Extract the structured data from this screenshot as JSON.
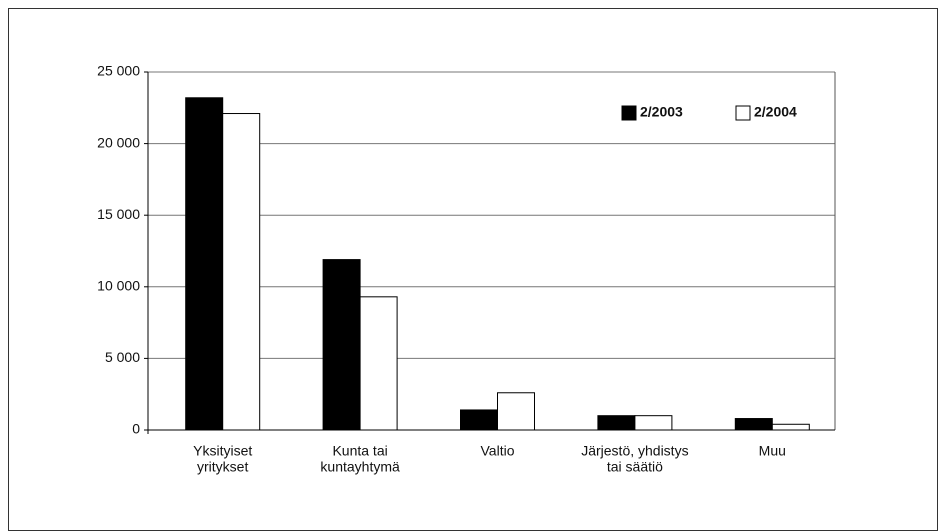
{
  "chart_data": {
    "type": "bar",
    "categories": [
      [
        "Yksityiset",
        "yritykset"
      ],
      [
        "Kunta tai",
        "kuntayhtymä"
      ],
      [
        "Valtio"
      ],
      [
        "Järjestö, yhdistys",
        "tai säätiö"
      ],
      [
        "Muu"
      ]
    ],
    "series": [
      {
        "name": "2/2003",
        "color": "#000000",
        "values": [
          23200,
          11900,
          1400,
          1000,
          800
        ]
      },
      {
        "name": "2/2004",
        "color": "#ffffff",
        "values": [
          22100,
          9300,
          2600,
          1000,
          400
        ]
      }
    ],
    "ylim": [
      0,
      25000
    ],
    "yticks": [
      0,
      {
        "value": 5000,
        "label": "5 000"
      },
      {
        "value": 10000,
        "label": "10 000"
      },
      {
        "value": 15000,
        "label": "15 000"
      },
      {
        "value": 20000,
        "label": "20 000"
      },
      {
        "value": 25000,
        "label": "25 000"
      }
    ],
    "grid": true,
    "legend": "top-right"
  }
}
